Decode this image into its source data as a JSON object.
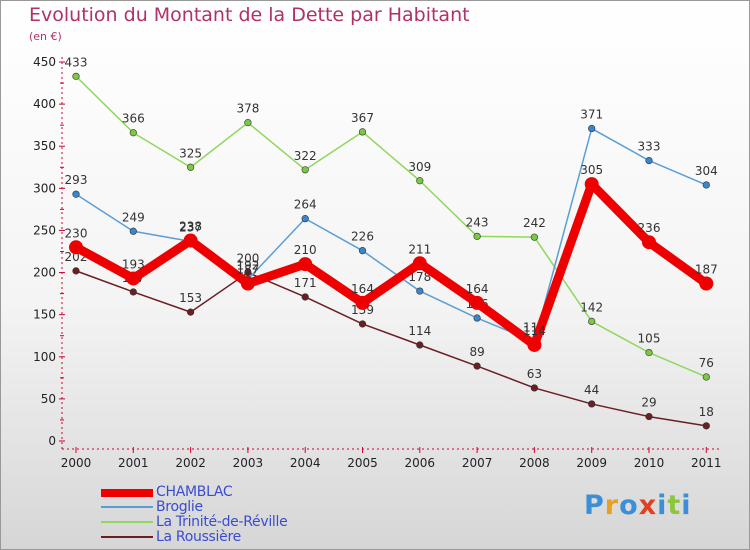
{
  "title": "Evolution du Montant de la Dette par Habitant",
  "unit_label": "(en €)",
  "logo": {
    "letters": [
      {
        "ch": "P",
        "color": "#3a8fd8"
      },
      {
        "ch": "r",
        "color": "#e8a020"
      },
      {
        "ch": "o",
        "color": "#3a8fd8"
      },
      {
        "ch": "x",
        "color": "#e04020"
      },
      {
        "ch": "i",
        "color": "#3a8fd8"
      },
      {
        "ch": "t",
        "color": "#8cc63f"
      },
      {
        "ch": "i",
        "color": "#3a8fd8"
      }
    ]
  },
  "chart_data": {
    "type": "line",
    "title": "Evolution du Montant de la Dette par Habitant",
    "ylabel": "(en €)",
    "xlabel": "",
    "ylim": [
      0,
      450
    ],
    "yticks": [
      0,
      50,
      100,
      150,
      200,
      250,
      300,
      350,
      400,
      450
    ],
    "grid": false,
    "legend_placement": "bottom-left",
    "x": [
      "2000",
      "2001",
      "2002",
      "2003",
      "2004",
      "2005",
      "2006",
      "2007",
      "2008",
      "2009",
      "2010",
      "2011"
    ],
    "series": [
      {
        "name": "La Roussière",
        "color": "#6b1f22",
        "marker": "#6b1f22",
        "values": [
          202,
          177,
          153,
          200,
          171,
          139,
          114,
          89,
          63,
          44,
          29,
          18
        ]
      },
      {
        "name": "La Trinité-de-Réville",
        "color": "#8fd85a",
        "marker": "#7cc843",
        "values": [
          433,
          366,
          325,
          378,
          322,
          367,
          309,
          243,
          242,
          142,
          105,
          76
        ]
      },
      {
        "name": "Broglie",
        "color": "#5b9ed6",
        "marker": "#3a86cc",
        "values": [
          293,
          249,
          237,
          192,
          264,
          226,
          178,
          146,
          118,
          371,
          333,
          304
        ]
      },
      {
        "name": "CHAMBLAC",
        "color": "#ee0000",
        "marker": "#ee0000",
        "values": [
          230,
          193,
          238,
          187,
          210,
          164,
          211,
          164,
          114,
          305,
          236,
          187
        ]
      }
    ]
  },
  "legend": [
    {
      "label": "CHAMBLAC",
      "color": "#ee0000"
    },
    {
      "label": "Broglie",
      "color": "#5b9ed6"
    },
    {
      "label": "La Trinité-de-Réville",
      "color": "#8fd85a"
    },
    {
      "label": "La Roussière",
      "color": "#6b1f22"
    }
  ]
}
